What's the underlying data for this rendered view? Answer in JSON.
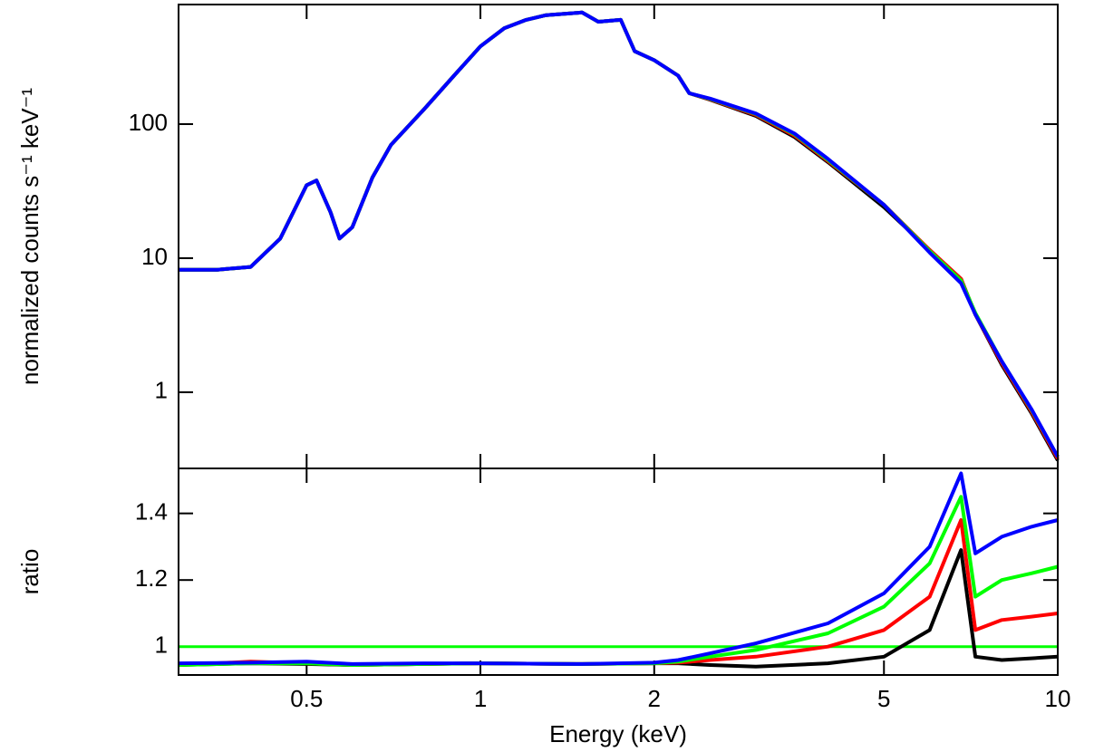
{
  "chart_data": [
    {
      "type": "line",
      "y_label": "normalized counts s⁻¹ keV⁻¹",
      "xlog": true,
      "ylog": true,
      "xlim": [
        0.3,
        10
      ],
      "ylim": [
        0.27,
        780
      ],
      "yticks": [
        1,
        10,
        100
      ],
      "x": [
        0.3,
        0.35,
        0.4,
        0.45,
        0.5,
        0.52,
        0.55,
        0.57,
        0.6,
        0.65,
        0.7,
        0.8,
        0.9,
        1.0,
        1.1,
        1.2,
        1.3,
        1.5,
        1.6,
        1.75,
        1.85,
        2.0,
        2.2,
        2.3,
        2.5,
        3,
        3.5,
        4,
        5,
        6,
        6.8,
        7.2,
        8,
        9,
        10
      ],
      "series": [
        {
          "name": "black",
          "color": "#000000",
          "values": [
            8.2,
            8.2,
            8.6,
            14,
            35,
            38,
            22,
            14,
            17,
            40,
            70,
            130,
            230,
            380,
            520,
            600,
            650,
            680,
            580,
            600,
            350,
            300,
            230,
            170,
            152,
            115,
            80,
            52,
            24,
            11.5,
            7,
            3.8,
            1.6,
            0.7,
            0.31
          ]
        },
        {
          "name": "red",
          "color": "#ff0000",
          "values": [
            8.2,
            8.2,
            8.6,
            14,
            35,
            38,
            22,
            14,
            17,
            40,
            70,
            130,
            230,
            380,
            520,
            600,
            650,
            680,
            580,
            600,
            350,
            300,
            230,
            170,
            153,
            117,
            82,
            53,
            25,
            11.5,
            7,
            3.8,
            1.65,
            0.72,
            0.32
          ]
        },
        {
          "name": "green",
          "color": "#00ff00",
          "values": [
            8.2,
            8.2,
            8.6,
            14,
            35,
            38,
            22,
            14,
            17,
            40,
            70,
            130,
            230,
            380,
            520,
            600,
            650,
            680,
            580,
            600,
            350,
            300,
            230,
            170,
            154,
            119,
            84,
            54,
            25,
            11.3,
            6.8,
            3.9,
            1.7,
            0.74,
            0.33
          ]
        },
        {
          "name": "blue",
          "color": "#0000ff",
          "values": [
            8.2,
            8.2,
            8.6,
            14,
            35,
            38,
            22,
            14,
            17,
            40,
            70,
            130,
            230,
            380,
            520,
            600,
            650,
            680,
            580,
            600,
            350,
            300,
            230,
            170,
            155,
            120,
            85,
            55,
            25,
            11,
            6.5,
            3.8,
            1.7,
            0.75,
            0.33
          ]
        }
      ]
    },
    {
      "type": "line",
      "x_label": "Energy (keV)",
      "y_label": "ratio",
      "xlog": true,
      "ylog": false,
      "xlim": [
        0.3,
        10
      ],
      "ylim": [
        0.915,
        1.535
      ],
      "xticks": [
        0.5,
        1,
        2,
        5,
        10
      ],
      "yticks": [
        1,
        1.2,
        1.4
      ],
      "reference_line": 1,
      "reference_color": "#00ff00",
      "x": [
        0.3,
        0.4,
        0.5,
        0.6,
        0.8,
        1,
        1.5,
        2,
        2.2,
        2.5,
        3,
        4,
        5,
        6,
        6.8,
        7.2,
        8,
        9,
        10
      ],
      "series": [
        {
          "name": "black",
          "color": "#000000",
          "values": [
            0.945,
            0.95,
            0.948,
            0.945,
            0.948,
            0.95,
            0.948,
            0.95,
            0.95,
            0.945,
            0.94,
            0.95,
            0.97,
            1.05,
            1.29,
            0.97,
            0.96,
            0.965,
            0.97
          ]
        },
        {
          "name": "red",
          "color": "#ff0000",
          "values": [
            0.945,
            0.955,
            0.95,
            0.945,
            0.948,
            0.95,
            0.948,
            0.95,
            0.952,
            0.96,
            0.97,
            1.0,
            1.05,
            1.15,
            1.38,
            1.05,
            1.08,
            1.09,
            1.1
          ]
        },
        {
          "name": "green",
          "color": "#00ff00",
          "values": [
            0.945,
            0.95,
            0.95,
            0.945,
            0.948,
            0.95,
            0.948,
            0.95,
            0.955,
            0.97,
            0.99,
            1.04,
            1.12,
            1.25,
            1.45,
            1.15,
            1.2,
            1.22,
            1.24
          ]
        },
        {
          "name": "blue",
          "color": "#0000ff",
          "values": [
            0.95,
            0.952,
            0.955,
            0.948,
            0.95,
            0.95,
            0.948,
            0.952,
            0.96,
            0.98,
            1.01,
            1.07,
            1.16,
            1.3,
            1.52,
            1.28,
            1.33,
            1.36,
            1.38
          ]
        }
      ]
    }
  ]
}
